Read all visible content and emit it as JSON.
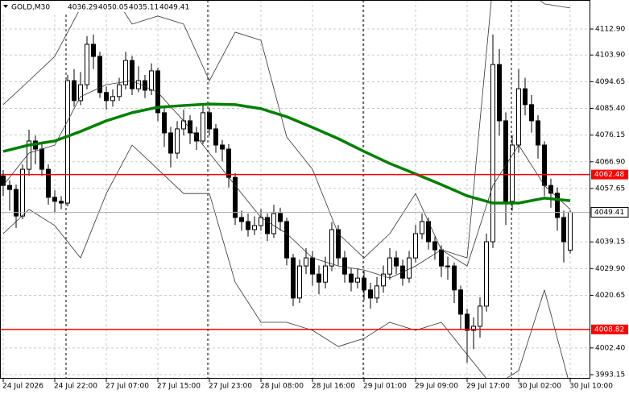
{
  "chart_data": {
    "type": "candlestick",
    "symbol": "GOLD,M30",
    "categories": [
      "24 Jul 2026",
      null,
      null,
      null,
      null,
      null,
      null,
      null,
      "24 Jul 22:00",
      null,
      null,
      null,
      null,
      null,
      null,
      null,
      "27 Jul 07:00",
      null,
      null,
      null,
      null,
      null,
      null,
      null,
      "27 Jul 15:00",
      null,
      null,
      null,
      null,
      null,
      null,
      null,
      "27 Jul 23:00",
      null,
      null,
      null,
      null,
      null,
      null,
      null,
      "28 Jul 08:00",
      null,
      null,
      null,
      null,
      null,
      null,
      null,
      "28 Jul 16:00",
      null,
      null,
      null,
      null,
      null,
      null,
      null,
      "29 Jul 01:00",
      null,
      null,
      null,
      null,
      null,
      null,
      null,
      "29 Jul 09:00",
      null,
      null,
      null,
      null,
      null,
      null,
      null,
      "29 Jul 17:00",
      null,
      null,
      null,
      null,
      null,
      null,
      null,
      "30 Jul 02:00",
      null,
      null,
      null,
      null,
      null,
      null,
      null,
      "30 Jul 10:00"
    ],
    "open": [
      4062.0,
      4058.7,
      4057.3,
      4048.1,
      4064.3,
      4074.1,
      4071.3,
      4064.3,
      4054.6,
      4053.2,
      4052.6,
      4095.0,
      4088.1,
      4093.6,
      4107.6,
      4103.4,
      4090.9,
      4088.1,
      4089.5,
      4093.6,
      4102.0,
      4092.2,
      4095.0,
      4091.7,
      4098.4,
      4083.9,
      4076.9,
      4069.9,
      4078.3,
      4081.1,
      4076.9,
      4074.1,
      4083.9,
      4078.3,
      4072.7,
      4071.3,
      4061.5,
      4047.6,
      4046.2,
      4043.4,
      4044.8,
      4047.6,
      4042.0,
      4049.0,
      4046.2,
      4033.6,
      4019.7,
      4030.8,
      4033.6,
      4028.0,
      4025.2,
      4030.8,
      4043.4,
      4033.6,
      4028.0,
      4025.2,
      4026.6,
      4022.5,
      4019.7,
      4023.9,
      4028.0,
      4033.6,
      4030.8,
      4026.6,
      4033.6,
      4042.0,
      4046.2,
      4039.2,
      4036.4,
      4030.8,
      4030.8,
      4022.5,
      4014.1,
      4008.5,
      4009.9,
      4016.9,
      4039.2,
      4100.6,
      4081.1,
      4053.2,
      4072.7,
      4092.2,
      4086.7,
      4081.1,
      4072.7,
      4058.7,
      4056.0,
      4047.6,
      4036.29
    ],
    "high": [
      4064.0,
      4060.5,
      4059.0,
      4066.0,
      4078.0,
      4076.0,
      4073.0,
      4066.0,
      4057.0,
      4055.0,
      4097.0,
      4099.0,
      4098.0,
      4110.4,
      4111.0,
      4105.0,
      4093.0,
      4092.0,
      4096.0,
      4105.0,
      4103.5,
      4100.0,
      4097.0,
      4101.0,
      4099.5,
      4086.0,
      4079.0,
      4081.0,
      4085.0,
      4083.0,
      4079.0,
      4087.0,
      4085.5,
      4080.0,
      4074.5,
      4073.0,
      4063.0,
      4050.0,
      4049.0,
      4048.0,
      4050.5,
      4049.0,
      4052.0,
      4051.0,
      4047.5,
      4035.0,
      4033.0,
      4037.0,
      4036.0,
      4031.0,
      4034.0,
      4046.0,
      4045.0,
      4036.0,
      4030.0,
      4030.0,
      4029.0,
      4025.0,
      4027.0,
      4031.0,
      4037.0,
      4036.0,
      4033.0,
      4036.0,
      4045.0,
      4049.0,
      4047.5,
      4041.0,
      4038.0,
      4034.0,
      4032.0,
      4024.0,
      4016.0,
      4013.0,
      4020.0,
      4042.0,
      4111.0,
      4106.0,
      4084.0,
      4076.0,
      4099.0,
      4096.0,
      4090.0,
      4083.0,
      4074.0,
      4061.0,
      4058.0,
      4050.0,
      4050.05
    ],
    "low": [
      4055.0,
      4050.0,
      4044.0,
      4047.0,
      4062.0,
      4066.0,
      4062.0,
      4052.0,
      4049.5,
      4050.5,
      4051.5,
      4086.0,
      4086.5,
      4092.0,
      4099.0,
      4089.0,
      4085.0,
      4086.0,
      4088.0,
      4092.0,
      4090.0,
      4091.0,
      4089.0,
      4090.0,
      4081.0,
      4072.0,
      4065.0,
      4068.0,
      4076.0,
      4073.0,
      4071.0,
      4073.0,
      4076.0,
      4070.0,
      4067.0,
      4058.0,
      4045.0,
      4043.0,
      4041.0,
      4041.5,
      4043.0,
      4039.5,
      4040.5,
      4043.0,
      4031.0,
      4016.9,
      4018.0,
      4028.0,
      4024.0,
      4021.0,
      4023.0,
      4029.0,
      4031.0,
      4025.0,
      4022.0,
      4023.0,
      4019.0,
      4016.0,
      4018.0,
      4021.5,
      4026.0,
      4028.0,
      4024.0,
      4025.0,
      4032.0,
      4040.0,
      4036.5,
      4033.0,
      4027.0,
      4026.0,
      4018.0,
      4009.0,
      3997.3,
      4002.0,
      4006.0,
      4015.0,
      4037.0,
      4076.0,
      4045.0,
      4050.0,
      4070.0,
      4083.0,
      4077.0,
      4068.0,
      4055.0,
      4051.0,
      4043.0,
      4032.0,
      4035.11
    ],
    "close": [
      4058.7,
      4057.3,
      4048.1,
      4064.3,
      4074.1,
      4071.3,
      4064.3,
      4054.6,
      4053.2,
      4052.6,
      4095.0,
      4088.1,
      4093.6,
      4107.6,
      4103.4,
      4090.9,
      4088.1,
      4089.5,
      4093.6,
      4102.0,
      4092.2,
      4095.0,
      4091.7,
      4098.4,
      4083.9,
      4076.9,
      4069.9,
      4078.3,
      4081.1,
      4076.9,
      4074.1,
      4083.9,
      4078.3,
      4072.7,
      4071.3,
      4061.5,
      4047.6,
      4046.2,
      4043.4,
      4044.8,
      4047.6,
      4042.0,
      4049.0,
      4046.2,
      4033.6,
      4019.7,
      4030.8,
      4033.6,
      4028.0,
      4025.2,
      4030.8,
      4043.4,
      4033.6,
      4028.0,
      4025.2,
      4026.6,
      4022.5,
      4019.7,
      4023.9,
      4028.0,
      4033.6,
      4030.8,
      4026.6,
      4033.6,
      4042.0,
      4046.2,
      4039.2,
      4036.4,
      4030.8,
      4030.8,
      4022.5,
      4014.1,
      4008.5,
      4009.9,
      4016.9,
      4039.2,
      4100.6,
      4081.1,
      4053.2,
      4072.7,
      4092.2,
      4086.7,
      4081.1,
      4072.7,
      4058.7,
      4056.0,
      4047.6,
      4039.2,
      4049.41
    ],
    "overlays": [
      {
        "color": "#333333",
        "x": [
          0,
          4,
          8,
          12,
          16,
          20,
          24,
          28,
          32,
          36,
          40,
          44,
          48,
          52,
          56,
          60,
          64,
          68,
          72,
          76,
          80,
          84,
          88
        ],
        "values": [
          4086.7,
          4095.0,
          4103.4,
          4120.2,
          4128.5,
          4114.6,
          4117.4,
          4114.6,
          4095.0,
          4111.8,
          4109.0,
          4075.5,
          4064.3,
          4042.0,
          4033.6,
          4042.0,
          4055.9,
          4036.4,
          4033.6,
          4128.5,
          4128.5,
          4121.6,
          4120.2
        ]
      },
      {
        "color": "#333333",
        "x": [
          0,
          4,
          8,
          12,
          16,
          20,
          24,
          28,
          32,
          36,
          40,
          44,
          48,
          52,
          56,
          60,
          64,
          68,
          72,
          76,
          80,
          84,
          88
        ],
        "values": [
          4058.7,
          4069.9,
          4072.7,
          4089.5,
          4093.6,
          4095.0,
          4090.9,
          4081.1,
          4069.9,
          4058.7,
          4047.6,
          4042.0,
          4033.6,
          4030.8,
          4029.4,
          4026.6,
          4030.8,
          4036.4,
          4030.8,
          4058.7,
          4072.7,
          4058.7,
          4050.4
        ]
      },
      {
        "color": "#333333",
        "x": [
          0,
          4,
          8,
          12,
          16,
          20,
          24,
          28,
          32,
          36,
          40,
          44,
          48,
          52,
          56,
          60,
          64,
          68,
          72,
          76,
          80,
          84,
          88
        ],
        "values": [
          4042.0,
          4050.4,
          4044.8,
          4033.6,
          4055.9,
          4072.7,
          4064.3,
          4055.9,
          4055.9,
          4025.2,
          4011.3,
          4011.3,
          4008.5,
          4002.9,
          4005.7,
          4011.3,
          4008.5,
          4011.3,
          4000.1,
          3989.0,
          3994.5,
          4022.5,
          3989.0
        ]
      },
      {
        "color": "#008000",
        "x": [
          0,
          4,
          8,
          12,
          16,
          20,
          24,
          28,
          32,
          36,
          40,
          44,
          48,
          52,
          56,
          60,
          64,
          68,
          72,
          76,
          80,
          84,
          88
        ],
        "values": [
          4070.5,
          4072.7,
          4074.1,
          4077.4,
          4081.1,
          4083.9,
          4085.8,
          4086.4,
          4086.9,
          4086.7,
          4085.3,
          4082.5,
          4078.8,
          4074.9,
          4070.5,
          4066.3,
          4062.7,
          4059.0,
          4055.1,
          4052.6,
          4052.6,
          4054.3,
          4053.4
        ]
      }
    ],
    "levels": [
      {
        "value": 4062.48,
        "color": "#ff0000"
      },
      {
        "value": 4008.82,
        "color": "#ff0000"
      }
    ],
    "ylim": [
      3991.75,
      4122.95
    ],
    "yticks": [
      {
        "value": 4112.9,
        "label": "4112.90"
      },
      {
        "value": 4103.9,
        "label": "4103.90"
      },
      4094.65,
      {
        "value": 4085.4,
        "label": "4085.40"
      },
      4076.15,
      {
        "value": 4066.9,
        "label": "4066.90"
      },
      4057.65,
      4039.15,
      {
        "value": 4029.9,
        "label": "4029.90"
      },
      4020.65,
      {
        "value": 4002.4,
        "label": "4002.40"
      },
      3993.15
    ],
    "grid": true
  }
}
